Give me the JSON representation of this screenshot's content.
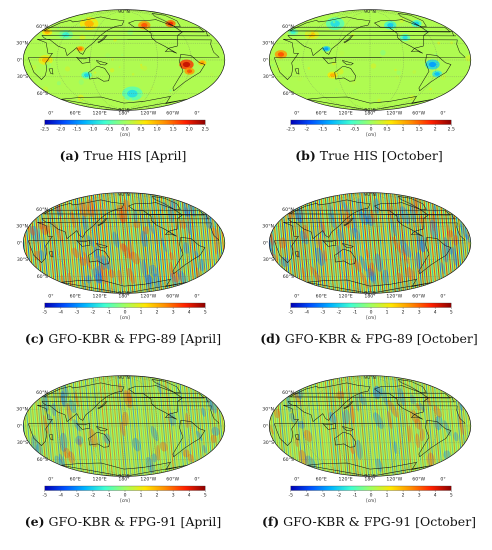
{
  "panels": [
    {
      "id": "a",
      "letter": "(a)",
      "title": "True HIS [April]",
      "field": "his",
      "season": "april",
      "ticks": [
        "-2.5",
        "-2.0",
        "-1.5",
        "-1.0",
        "-0.5",
        "0.0",
        "0.5",
        "1.0",
        "1.5",
        "2.0",
        "2.5"
      ]
    },
    {
      "id": "b",
      "letter": "(b)",
      "title": "True HIS [October]",
      "field": "his",
      "season": "october",
      "ticks": [
        "-2.5",
        "-2",
        "-1.5",
        "-1",
        "-0.5",
        "0",
        "0.5",
        "1",
        "1.5",
        "2",
        "2.5"
      ]
    },
    {
      "id": "c",
      "letter": "(c)",
      "title": "GFO-KBR & FPG-89 [April]",
      "field": "stripes89",
      "season": "april",
      "ticks": [
        "-5",
        "-4",
        "-3",
        "-2",
        "-1",
        "0",
        "1",
        "2",
        "3",
        "4",
        "5"
      ]
    },
    {
      "id": "d",
      "letter": "(d)",
      "title": "GFO-KBR & FPG-89 [October]",
      "field": "stripes89",
      "season": "october",
      "ticks": [
        "-5",
        "-4",
        "-3",
        "-2",
        "-1",
        "0",
        "1",
        "2",
        "3",
        "4",
        "5"
      ]
    },
    {
      "id": "e",
      "letter": "(e)",
      "title": "GFO-KBR & FPG-91 [April]",
      "field": "stripes91",
      "season": "april",
      "ticks": [
        "-5",
        "-4",
        "-3",
        "-2",
        "-1",
        "0",
        "1",
        "2",
        "3",
        "4",
        "5"
      ]
    },
    {
      "id": "f",
      "letter": "(f)",
      "title": "GFO-KBR & FPG-91 [October]",
      "field": "stripes91",
      "season": "october",
      "ticks": [
        "-5",
        "-4",
        "-3",
        "-2",
        "-1",
        "0",
        "1",
        "2",
        "3",
        "4",
        "5"
      ]
    }
  ],
  "unit": "[cm]",
  "lat_labels": [
    "90°N",
    "60°N",
    "30°N",
    "0°",
    "30°S",
    "60°S",
    "90°S"
  ],
  "lon_labels": [
    "0°",
    "60°E",
    "120°E",
    "180°",
    "120°W",
    "60°W",
    "0°"
  ],
  "colormap": [
    "#0000b4",
    "#0050ff",
    "#00b4ff",
    "#40ffd0",
    "#a0ff60",
    "#ffe600",
    "#ff8c00",
    "#ff2000",
    "#8c0000"
  ]
}
